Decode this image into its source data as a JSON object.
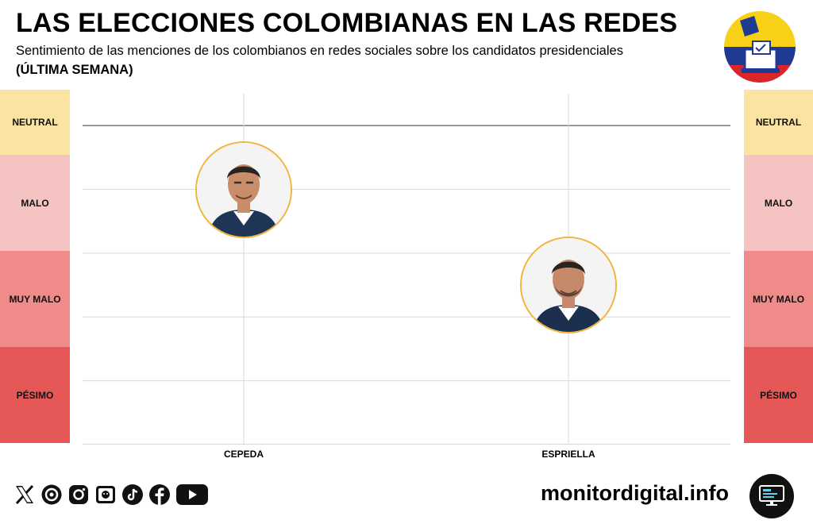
{
  "header": {
    "title": "LAS ELECCIONES COLOMBIANAS EN LAS REDES",
    "subtitle": "Sentimiento de las menciones de los colombianos en redes sociales sobre los candidatos presidenciales",
    "period": "(ÚLTIMA SEMANA)"
  },
  "colors": {
    "neutral": "#fbe3a2",
    "malo": "#f5c3c1",
    "muy_malo": "#ef8b89",
    "pesimo": "#e65858",
    "avatar_border": "#f2b43c",
    "gridline": "#d9d9d9",
    "top_line": "#333333"
  },
  "bands": [
    {
      "label": "NEUTRAL",
      "key": "neutral"
    },
    {
      "label": "MALO",
      "key": "malo"
    },
    {
      "label": "MUY MALO",
      "key": "muy_malo"
    },
    {
      "label": "PÉSIMO",
      "key": "pesimo"
    }
  ],
  "chart_data": {
    "type": "scatter",
    "title": "",
    "xlabel": "",
    "ylabel": "",
    "categories": [
      "CEPEDA",
      "ESPRIELLA"
    ],
    "y_scale_levels": [
      "NEUTRAL",
      "MALO",
      "MUY MALO",
      "PÉSIMO"
    ],
    "ylim": [
      0,
      5.5
    ],
    "values": [
      4.0,
      2.5
    ],
    "markers": [
      "candidate-photo",
      "candidate-photo"
    ],
    "grid": true
  },
  "footer": {
    "social_icons": [
      "x-icon",
      "threads-icon",
      "instagram-icon",
      "news-icon",
      "tiktok-icon",
      "facebook-icon",
      "youtube-icon"
    ],
    "site": "monitordigital.info",
    "site_icon": "monitor-icon"
  }
}
